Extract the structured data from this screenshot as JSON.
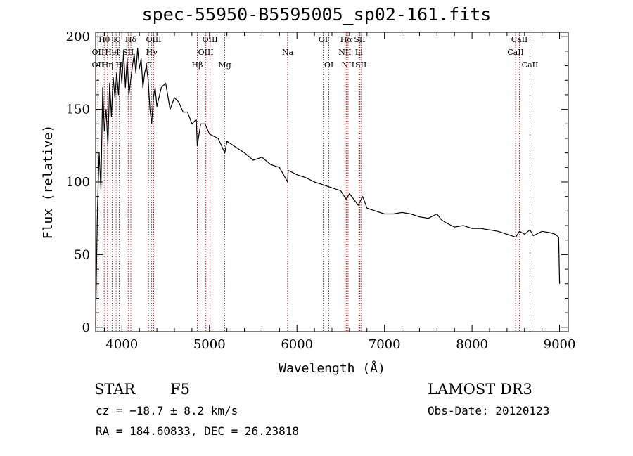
{
  "chart_data": {
    "type": "line",
    "title": "spec-55950-B5595005_sp02-161.fits",
    "xlabel": "Wavelength (Å)",
    "ylabel": "Flux (relative)",
    "xlim": [
      3700,
      9100
    ],
    "ylim": [
      -3,
      203
    ],
    "x_ticks": [
      4000,
      5000,
      6000,
      7000,
      8000,
      9000
    ],
    "y_ticks": [
      0,
      50,
      100,
      150,
      200
    ],
    "grid": false,
    "series": [
      {
        "name": "flux",
        "x": [
          3700,
          3720,
          3740,
          3760,
          3780,
          3800,
          3820,
          3840,
          3860,
          3880,
          3900,
          3920,
          3940,
          3960,
          3980,
          4000,
          4020,
          4040,
          4060,
          4080,
          4100,
          4120,
          4140,
          4160,
          4180,
          4200,
          4220,
          4240,
          4260,
          4280,
          4300,
          4320,
          4340,
          4360,
          4380,
          4400,
          4450,
          4500,
          4550,
          4600,
          4650,
          4700,
          4750,
          4800,
          4850,
          4861,
          4900,
          4950,
          5000,
          5100,
          5175,
          5200,
          5300,
          5400,
          5500,
          5600,
          5700,
          5800,
          5893,
          5900,
          6000,
          6100,
          6200,
          6300,
          6400,
          6500,
          6563,
          6600,
          6700,
          6750,
          6800,
          6900,
          7000,
          7100,
          7200,
          7300,
          7400,
          7500,
          7600,
          7650,
          7700,
          7800,
          7900,
          8000,
          8100,
          8200,
          8300,
          8400,
          8500,
          8542,
          8600,
          8662,
          8700,
          8800,
          8900,
          8950,
          8990,
          9000
        ],
        "y": [
          2,
          80,
          120,
          95,
          165,
          135,
          150,
          125,
          168,
          145,
          172,
          158,
          175,
          160,
          182,
          168,
          190,
          165,
          185,
          160,
          170,
          180,
          188,
          175,
          192,
          178,
          185,
          165,
          175,
          180,
          170,
          150,
          140,
          158,
          165,
          152,
          165,
          168,
          150,
          158,
          155,
          148,
          148,
          140,
          143,
          125,
          140,
          140,
          133,
          130,
          120,
          128,
          124,
          120,
          115,
          117,
          112,
          110,
          100,
          108,
          105,
          103,
          100,
          98,
          96,
          94,
          88,
          92,
          84,
          90,
          82,
          80,
          78,
          78,
          79,
          78,
          76,
          75,
          78,
          74,
          72,
          69,
          70,
          68,
          68,
          67,
          66,
          64,
          62,
          66,
          64,
          67,
          63,
          66,
          65,
          64,
          62,
          30
        ]
      }
    ],
    "line_markers": [
      {
        "name": "OII",
        "x": 3727,
        "row": 2
      },
      {
        "name": "Hθ",
        "x": 3798,
        "row": 0
      },
      {
        "name": "OII",
        "x": 3727,
        "row": 1
      },
      {
        "name": "Hη",
        "x": 3835,
        "row": 2
      },
      {
        "name": "HeI",
        "x": 3889,
        "row": 1
      },
      {
        "name": "K",
        "x": 3934,
        "row": 0
      },
      {
        "name": "H",
        "x": 3969,
        "row": 2
      },
      {
        "name": "Hδ",
        "x": 4102,
        "row": 0
      },
      {
        "name": "SII",
        "x": 4072,
        "row": 1
      },
      {
        "name": "OIII",
        "x": 4363,
        "row": 0
      },
      {
        "name": "Hγ",
        "x": 4340,
        "row": 1
      },
      {
        "name": "G",
        "x": 4304,
        "row": 2
      },
      {
        "name": "Hβ",
        "x": 4861,
        "row": 2
      },
      {
        "name": "OIII",
        "x": 5007,
        "row": 0
      },
      {
        "name": "OIII",
        "x": 4959,
        "row": 1
      },
      {
        "name": "Mg",
        "x": 5175,
        "row": 2
      },
      {
        "name": "Na",
        "x": 5893,
        "row": 1
      },
      {
        "name": "OI",
        "x": 6300,
        "row": 0
      },
      {
        "name": "OI",
        "x": 6364,
        "row": 2
      },
      {
        "name": "Hα",
        "x": 6563,
        "row": 0
      },
      {
        "name": "NII",
        "x": 6548,
        "row": 1
      },
      {
        "name": "NII",
        "x": 6584,
        "row": 2
      },
      {
        "name": "SII",
        "x": 6717,
        "row": 0
      },
      {
        "name": "Li",
        "x": 6708,
        "row": 1
      },
      {
        "name": "SII",
        "x": 6731,
        "row": 2
      },
      {
        "name": "CaII",
        "x": 8542,
        "row": 0
      },
      {
        "name": "CaII",
        "x": 8498,
        "row": 1
      },
      {
        "name": "CaII",
        "x": 8662,
        "row": 2
      }
    ]
  },
  "info": {
    "object_class": "STAR",
    "subclass": "F5",
    "survey": "LAMOST DR3",
    "velocity": "cz = −18.7 ± 8.2 km/s",
    "obs_date": "Obs-Date: 20120123",
    "coordinates": "RA = 184.60833, DEC =  26.23818"
  },
  "colors": {
    "spectrum": "#000000",
    "marker_line": "#b22222",
    "axis": "#000000"
  }
}
